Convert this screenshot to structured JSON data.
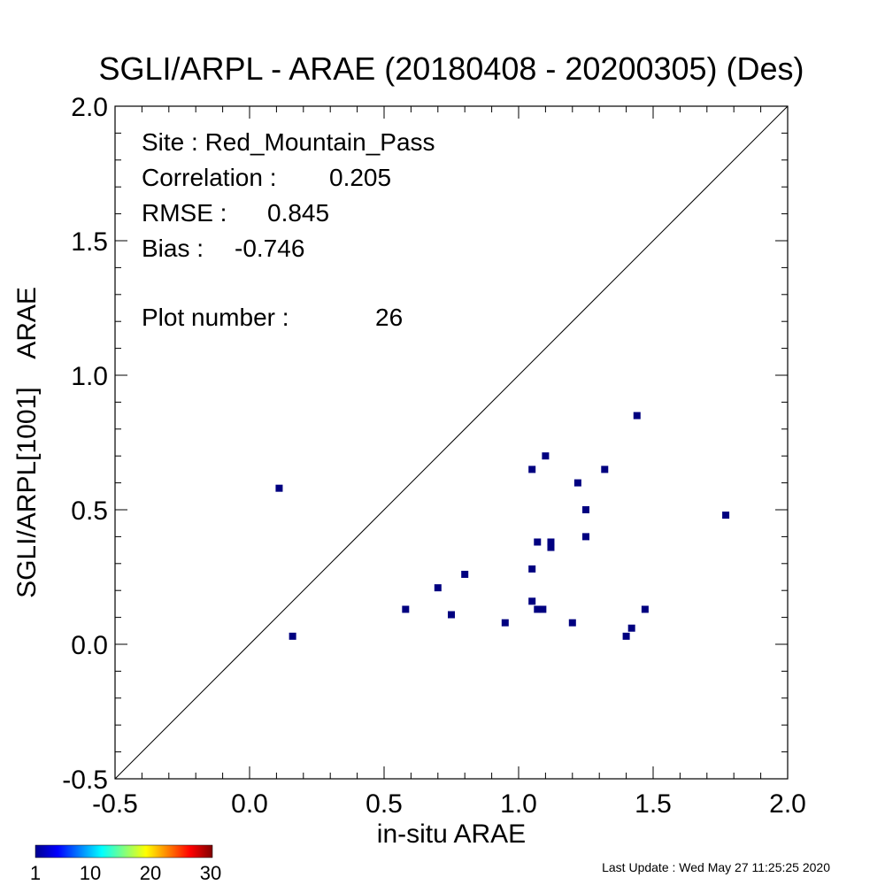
{
  "chart_data": {
    "type": "scatter",
    "title": "SGLI/ARPL - ARAE (20180408 - 20200305) (Des)",
    "xlabel": "in-situ ARAE",
    "ylabel": "SGLI/ARPL[1001]    ARAE",
    "xlim": [
      -0.5,
      2.0
    ],
    "ylim": [
      -0.5,
      2.0
    ],
    "x_ticks": [
      -0.5,
      0.0,
      0.5,
      1.0,
      1.5,
      2.0
    ],
    "x_tick_labels": [
      "-0.5",
      "0.0",
      "0.5",
      "1.0",
      "1.5",
      "2.0"
    ],
    "y_ticks": [
      -0.5,
      0.0,
      0.5,
      1.0,
      1.5,
      2.0
    ],
    "y_tick_labels": [
      "-0.5",
      "0.0",
      "0.5",
      "1.0",
      "1.5",
      "2.0"
    ],
    "reference_line": "1:1",
    "grid": false,
    "marker_color": "#000080",
    "points": [
      {
        "x": 0.11,
        "y": 0.58
      },
      {
        "x": 0.16,
        "y": 0.03
      },
      {
        "x": 0.58,
        "y": 0.13
      },
      {
        "x": 0.7,
        "y": 0.21
      },
      {
        "x": 0.75,
        "y": 0.11
      },
      {
        "x": 0.8,
        "y": 0.26
      },
      {
        "x": 0.95,
        "y": 0.08
      },
      {
        "x": 1.05,
        "y": 0.65
      },
      {
        "x": 1.05,
        "y": 0.28
      },
      {
        "x": 1.05,
        "y": 0.16
      },
      {
        "x": 1.07,
        "y": 0.38
      },
      {
        "x": 1.07,
        "y": 0.13
      },
      {
        "x": 1.09,
        "y": 0.13
      },
      {
        "x": 1.1,
        "y": 0.7
      },
      {
        "x": 1.12,
        "y": 0.38
      },
      {
        "x": 1.12,
        "y": 0.36
      },
      {
        "x": 1.2,
        "y": 0.08
      },
      {
        "x": 1.22,
        "y": 0.6
      },
      {
        "x": 1.25,
        "y": 0.5
      },
      {
        "x": 1.25,
        "y": 0.4
      },
      {
        "x": 1.32,
        "y": 0.65
      },
      {
        "x": 1.4,
        "y": 0.03
      },
      {
        "x": 1.42,
        "y": 0.06
      },
      {
        "x": 1.44,
        "y": 0.85
      },
      {
        "x": 1.47,
        "y": 0.13
      },
      {
        "x": 1.77,
        "y": 0.48
      }
    ],
    "stats": [
      {
        "label": "Site : Red_Mountain_Pass",
        "value": ""
      },
      {
        "label": "Correlation :",
        "value": "0.205"
      },
      {
        "label": "RMSE :",
        "value": "0.845"
      },
      {
        "label": "Bias :",
        "value": "-0.746"
      },
      {
        "label": "Plot number :",
        "value": "26"
      }
    ],
    "colorbar": {
      "colors": [
        "#00008f",
        "#0000ff",
        "#0080ff",
        "#00ffff",
        "#80ff80",
        "#ffff00",
        "#ff8000",
        "#ff0000",
        "#800000"
      ],
      "tick_labels": [
        "1",
        "10",
        "20",
        "30"
      ]
    }
  },
  "footer": {
    "last_update": "Last Update : Wed May 27 11:25:25 2020"
  }
}
